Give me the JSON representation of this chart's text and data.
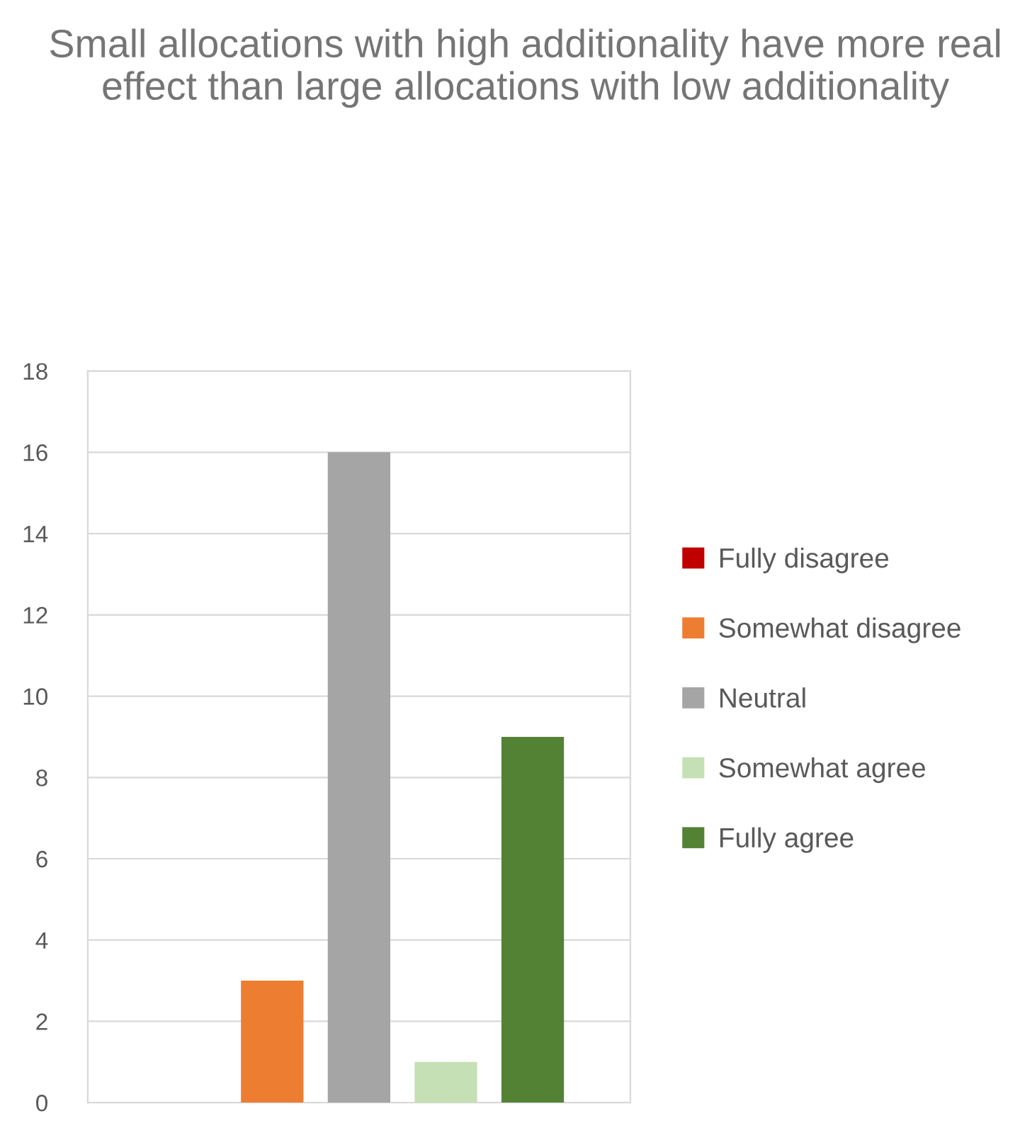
{
  "chart_data": {
    "type": "bar",
    "title": "Small allocations with high additionality have more real effect than large allocations with low additionality",
    "categories": [
      null
    ],
    "series": [
      {
        "name": "Fully disagree",
        "color": "#c00000",
        "values": [
          0
        ]
      },
      {
        "name": "Somewhat disagree",
        "color": "#ed7d31",
        "values": [
          3
        ]
      },
      {
        "name": "Neutral",
        "color": "#a5a5a5",
        "values": [
          16
        ]
      },
      {
        "name": "Somewhat agree",
        "color": "#c5e0b4",
        "values": [
          1
        ]
      },
      {
        "name": "Fully agree",
        "color": "#548235",
        "values": [
          9
        ]
      }
    ],
    "ylim": [
      0,
      18
    ],
    "yticks": [
      0,
      2,
      4,
      6,
      8,
      10,
      12,
      14,
      16,
      18
    ],
    "grid": "y",
    "legend": "right"
  }
}
